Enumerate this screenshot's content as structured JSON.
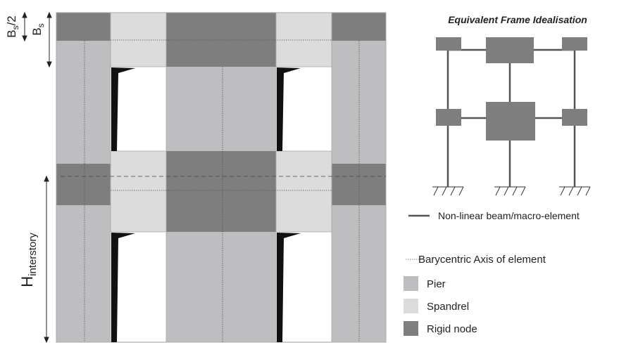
{
  "dimensions": {
    "bs_half": {
      "symbol": "B",
      "subscript": "s",
      "suffix": "/2"
    },
    "bs": {
      "symbol": "B",
      "subscript": "s"
    },
    "h_interstory": {
      "symbol": "H",
      "subscript": "interstory"
    }
  },
  "frame": {
    "title": "Equivalent Frame Idealisation"
  },
  "legend": [
    {
      "label": "Non-linear beam/macro-element"
    },
    {
      "label": "Barycentric Axis of element"
    },
    {
      "label": "Pier"
    },
    {
      "label": "Spandrel"
    },
    {
      "label": "Rigid node"
    }
  ]
}
